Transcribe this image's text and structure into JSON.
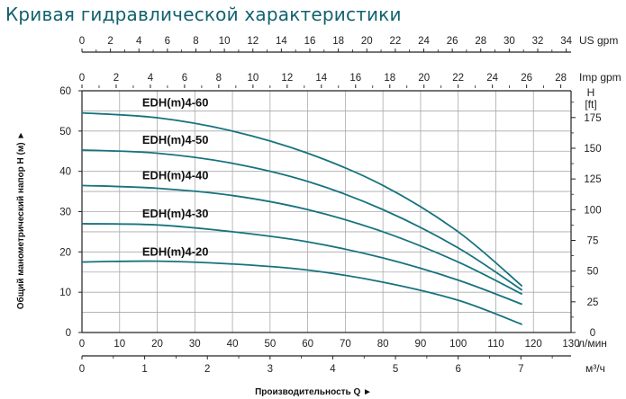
{
  "title": "Кривая гидравлической характеристики",
  "chart_data": {
    "type": "line",
    "title": "Кривая гидравлической характеристики",
    "xlabel": "Производительность Q ►",
    "ylabel": "Общий манометрический напор H (м) ►",
    "grid": true,
    "x_unit": "л/мин",
    "y_unit": "",
    "xlim": [
      0,
      130
    ],
    "ylim": [
      0,
      60
    ],
    "x_ticks": [
      0,
      10,
      20,
      30,
      40,
      50,
      60,
      70,
      80,
      90,
      100,
      110,
      120,
      130
    ],
    "y_ticks": [
      0,
      10,
      20,
      30,
      40,
      50,
      60
    ],
    "secondary_axes": {
      "top_us_gpm": {
        "label": "US gpm",
        "max": 34.34,
        "ticks": [
          0,
          2,
          4,
          6,
          8,
          10,
          12,
          14,
          16,
          18,
          20,
          22,
          24,
          26,
          28,
          30,
          32,
          34
        ]
      },
      "top_imp_gpm": {
        "label": "Imp gpm",
        "max": 28.6,
        "ticks": [
          0,
          2,
          4,
          6,
          8,
          10,
          12,
          14,
          16,
          18,
          20,
          22,
          24,
          26,
          28
        ]
      },
      "bottom_m3h": {
        "label": "м³/ч",
        "max": 7.8,
        "ticks": [
          0,
          1,
          2,
          3,
          4,
          5,
          6,
          7
        ]
      },
      "right_ft": {
        "label_line1": "H",
        "label_line2": "[ft]",
        "max": 196.8,
        "ticks": [
          0,
          25,
          50,
          75,
          100,
          125,
          150,
          175
        ]
      }
    },
    "series": [
      {
        "name": "EDH(m)4-60",
        "color": "#17737e",
        "points": [
          [
            0,
            54.5
          ],
          [
            20,
            53.3
          ],
          [
            40,
            50
          ],
          [
            60,
            44.5
          ],
          [
            80,
            36.5
          ],
          [
            100,
            25
          ],
          [
            117,
            11.5
          ]
        ]
      },
      {
        "name": "EDH(m)4-50",
        "color": "#17737e",
        "points": [
          [
            0,
            45.3
          ],
          [
            20,
            44.5
          ],
          [
            40,
            42
          ],
          [
            60,
            37.5
          ],
          [
            80,
            30.5
          ],
          [
            100,
            21
          ],
          [
            117,
            10.5
          ]
        ]
      },
      {
        "name": "EDH(m)4-40",
        "color": "#17737e",
        "points": [
          [
            0,
            36.5
          ],
          [
            20,
            35.8
          ],
          [
            40,
            34
          ],
          [
            60,
            30.5
          ],
          [
            80,
            25
          ],
          [
            100,
            17.5
          ],
          [
            117,
            9.5
          ]
        ]
      },
      {
        "name": "EDH(m)4-30",
        "color": "#17737e",
        "points": [
          [
            0,
            27
          ],
          [
            20,
            26.7
          ],
          [
            40,
            25
          ],
          [
            60,
            22.5
          ],
          [
            80,
            18.5
          ],
          [
            100,
            13
          ],
          [
            117,
            7
          ]
        ]
      },
      {
        "name": "EDH(m)4-20",
        "color": "#17737e",
        "points": [
          [
            0,
            17.5
          ],
          [
            20,
            17.7
          ],
          [
            40,
            17
          ],
          [
            60,
            15.5
          ],
          [
            80,
            12.5
          ],
          [
            100,
            8
          ],
          [
            117,
            2
          ]
        ]
      }
    ]
  }
}
